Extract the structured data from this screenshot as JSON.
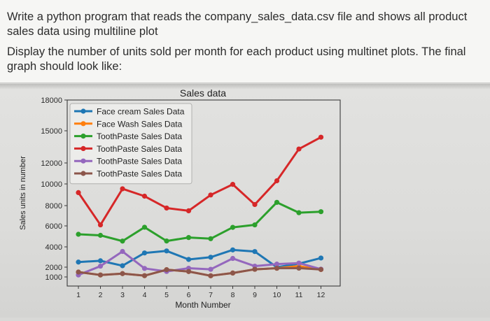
{
  "question": {
    "line1": "Write a python program that reads the company_sales_data.csv file and shows all product sales data using multiline plot",
    "line2": "Display the number of units sold per month for each product using multinet plots. The final graph should look like:"
  },
  "chart_data": {
    "type": "line",
    "title": "Sales data",
    "xlabel": "Month Number",
    "ylabel": "Sales units in number",
    "ytick_labels": [
      "1000",
      "2000",
      "4000",
      "6000",
      "8000",
      "10000",
      "12000",
      "15000",
      "18000"
    ],
    "xtick_labels": [
      "1",
      "2",
      "3",
      "4",
      "5",
      "6",
      "7",
      "8",
      "9",
      "10",
      "11",
      "12"
    ],
    "ylim": [
      0,
      18000
    ],
    "xlim": [
      1,
      12
    ],
    "grid": false,
    "legend_position": "upper-left",
    "x": [
      1,
      2,
      3,
      4,
      5,
      6,
      7,
      8,
      9,
      10,
      11,
      12
    ],
    "series": [
      {
        "name": "Face cream Sales Data",
        "color": "#1f77b4",
        "values": [
          2500,
          2630,
          2140,
          3400,
          3600,
          2760,
          2980,
          3700,
          3540,
          1990,
          2340,
          2900
        ]
      },
      {
        "name": "Face Wash Sales Data",
        "color": "#ff7f0e",
        "values": [
          1500,
          1200,
          1340,
          1130,
          1740,
          1555,
          1120,
          1400,
          1780,
          1890,
          2100,
          1760
        ]
      },
      {
        "name": "ToothPaste Sales Data",
        "color": "#2ca02c",
        "values": [
          5200,
          5100,
          4550,
          5870,
          4560,
          4890,
          4780,
          5860,
          6100,
          8300,
          7300,
          7400
        ]
      },
      {
        "name": "ToothPaste Sales Data",
        "color": "#d62728",
        "values": [
          9200,
          6100,
          9550,
          8870,
          7760,
          7490,
          8980,
          9960,
          8100,
          10300,
          13300,
          14400
        ]
      },
      {
        "name": "ToothPaste Sales Data",
        "color": "#9467bd",
        "values": [
          1200,
          2100,
          3550,
          1870,
          1560,
          1890,
          1780,
          2860,
          2100,
          2300,
          2400,
          1800
        ]
      },
      {
        "name": "ToothPaste Sales Data",
        "color": "#8c564b",
        "values": [
          1500,
          1200,
          1340,
          1130,
          1740,
          1555,
          1120,
          1400,
          1780,
          1890,
          1900,
          1760
        ]
      }
    ]
  }
}
